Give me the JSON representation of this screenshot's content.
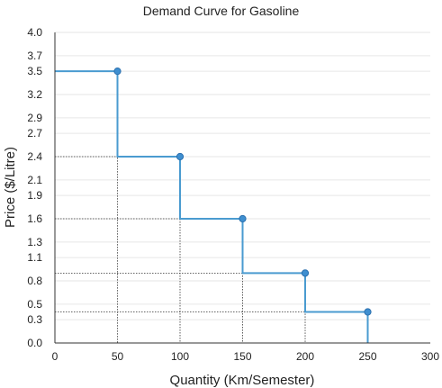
{
  "chart_data": {
    "type": "line",
    "title": "Demand Curve for Gasoline",
    "xlabel": "Quantity (Km/Semester)",
    "ylabel": "Price ($/Litre)",
    "xlim": [
      0,
      300
    ],
    "ylim": [
      0,
      4.0
    ],
    "x_ticks": [
      "0",
      "50",
      "100",
      "150",
      "200",
      "250",
      "300"
    ],
    "y_ticks": [
      "0.0",
      "0.3",
      "0.5",
      "0.8",
      "1.1",
      "1.3",
      "1.6",
      "1.9",
      "2.1",
      "2.4",
      "2.7",
      "2.9",
      "3.2",
      "3.5",
      "3.7",
      "4.0"
    ],
    "grid": true,
    "step": true,
    "points": [
      {
        "x": 50,
        "y": 3.5
      },
      {
        "x": 100,
        "y": 2.4
      },
      {
        "x": 150,
        "y": 1.6
      },
      {
        "x": 200,
        "y": 0.9
      },
      {
        "x": 250,
        "y": 0.4
      }
    ],
    "line_color": "#4a9bd0",
    "point_color": "#3f8fd0"
  }
}
